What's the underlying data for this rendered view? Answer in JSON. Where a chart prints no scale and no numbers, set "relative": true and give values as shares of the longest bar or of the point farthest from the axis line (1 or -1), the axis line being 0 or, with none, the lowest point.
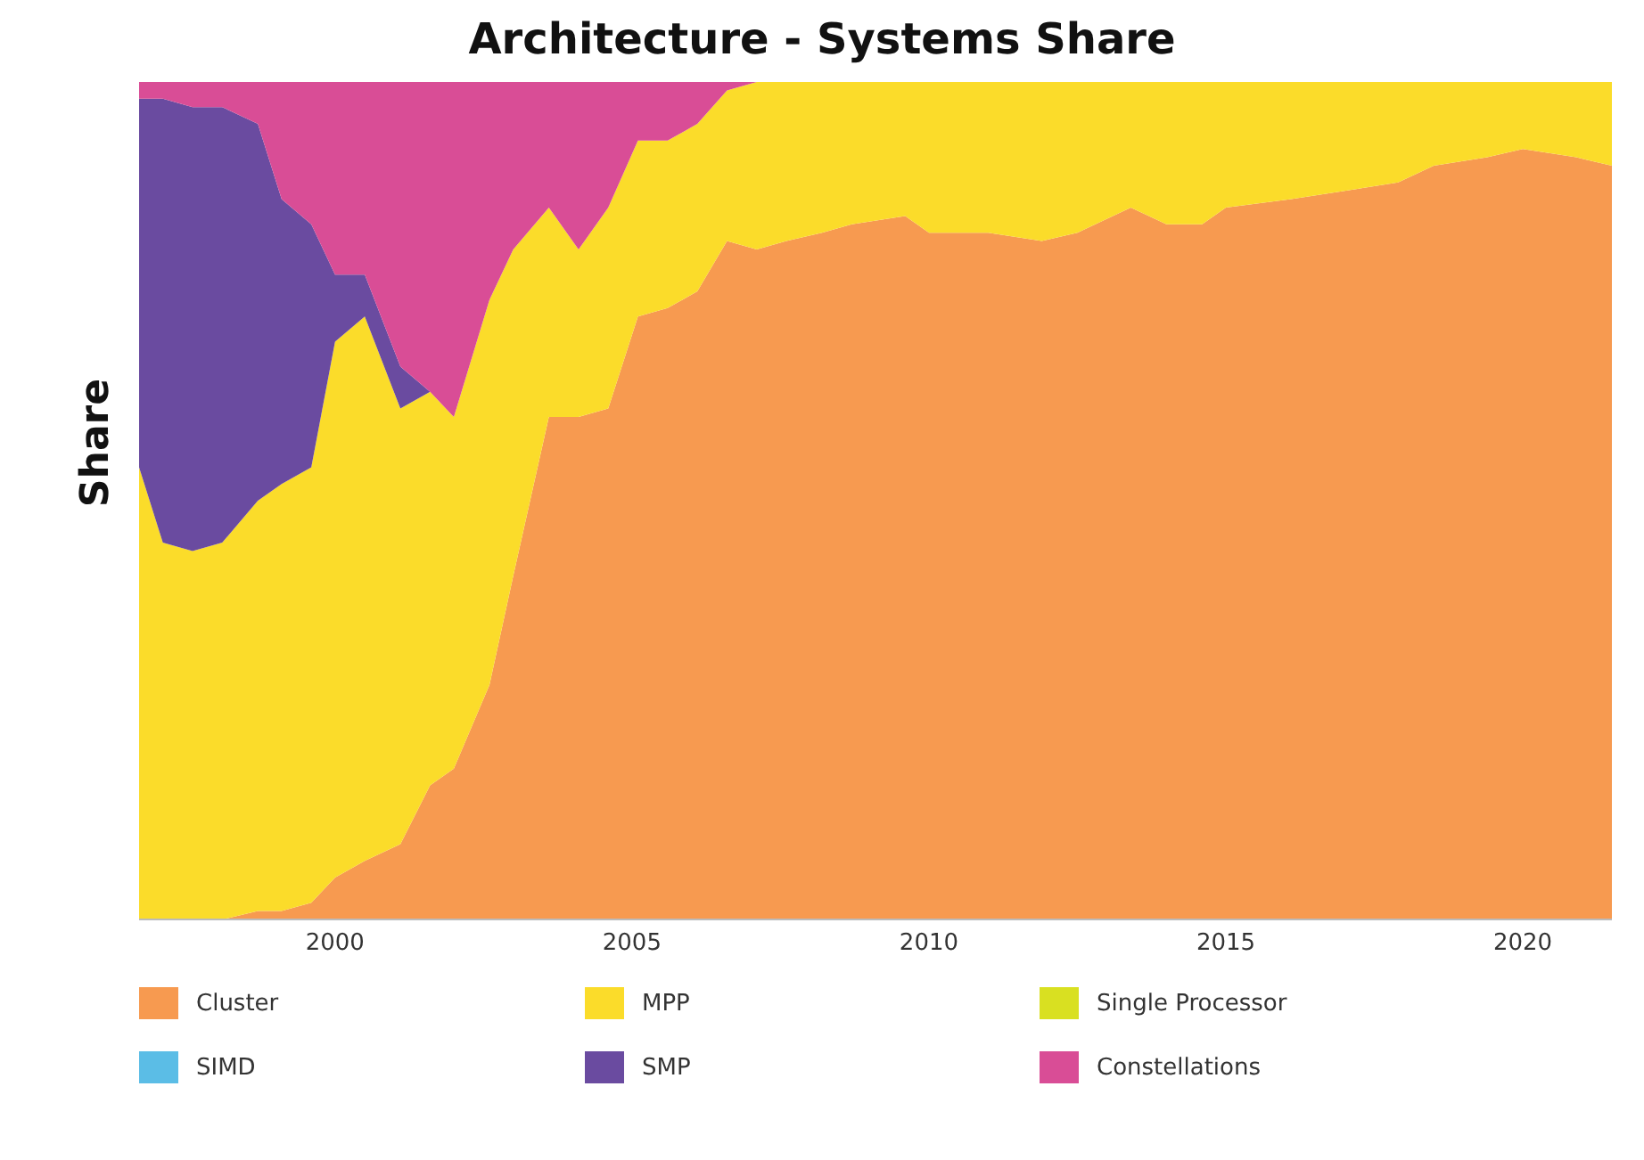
{
  "chart_data": {
    "type": "area",
    "title": "Architecture - Systems Share",
    "ylabel": "Share",
    "relative": true,
    "stacked": true,
    "legend": "bottom",
    "grid": false,
    "xlim": [
      1996.7,
      2021.5
    ],
    "xticks": [
      2000,
      2005,
      2010,
      2015,
      2020
    ],
    "x": [
      1996.7,
      1997.1,
      1997.6,
      1998.1,
      1998.7,
      1999.1,
      1999.6,
      2000.0,
      2000.5,
      2001.1,
      2001.6,
      2002.0,
      2002.6,
      2003.0,
      2003.6,
      2004.1,
      2004.6,
      2005.1,
      2005.6,
      2006.1,
      2006.6,
      2007.1,
      2007.6,
      2008.2,
      2008.7,
      2009.6,
      2010.0,
      2011.0,
      2011.9,
      2012.5,
      2013.4,
      2014.0,
      2014.6,
      2015.0,
      2016.1,
      2017.0,
      2017.9,
      2018.5,
      2019.4,
      2020.0,
      2020.9,
      2021.5
    ],
    "series": [
      {
        "name": "Cluster",
        "color": "#f79a50",
        "values": [
          0,
          0,
          0,
          0,
          0.01,
          0.01,
          0.02,
          0.05,
          0.07,
          0.09,
          0.16,
          0.18,
          0.28,
          0.41,
          0.6,
          0.6,
          0.61,
          0.72,
          0.73,
          0.75,
          0.81,
          0.8,
          0.81,
          0.82,
          0.83,
          0.84,
          0.82,
          0.82,
          0.81,
          0.82,
          0.85,
          0.83,
          0.83,
          0.85,
          0.86,
          0.87,
          0.88,
          0.9,
          0.91,
          0.92,
          0.91,
          0.9
        ]
      },
      {
        "name": "MPP",
        "color": "#fbdc2a",
        "values": [
          0.54,
          0.45,
          0.44,
          0.45,
          0.49,
          0.51,
          0.52,
          0.64,
          0.65,
          0.52,
          0.47,
          0.42,
          0.46,
          0.39,
          0.25,
          0.2,
          0.24,
          0.21,
          0.2,
          0.2,
          0.18,
          0.2,
          0.19,
          0.18,
          0.17,
          0.16,
          0.18,
          0.18,
          0.19,
          0.18,
          0.15,
          0.17,
          0.17,
          0.15,
          0.14,
          0.13,
          0.12,
          0.1,
          0.09,
          0.08,
          0.09,
          0.1
        ]
      },
      {
        "name": "Single Processor",
        "color": "#d9e021",
        "values": [
          null,
          null,
          null,
          null,
          null,
          null,
          null,
          null,
          null,
          null,
          null,
          null,
          null,
          null,
          null,
          null,
          null,
          null,
          null,
          null,
          null,
          null,
          null,
          null,
          null,
          null,
          null,
          null,
          null,
          null,
          null,
          null,
          null,
          null,
          null,
          null,
          null,
          null,
          null,
          null,
          null,
          null
        ]
      },
      {
        "name": "SIMD",
        "color": "#5bbde6",
        "values": [
          null,
          null,
          null,
          null,
          null,
          null,
          null,
          null,
          null,
          null,
          null,
          null,
          null,
          null,
          null,
          null,
          null,
          null,
          null,
          null,
          null,
          null,
          null,
          null,
          null,
          null,
          null,
          null,
          null,
          null,
          null,
          null,
          null,
          null,
          null,
          null,
          null,
          null,
          null,
          null,
          null,
          null
        ]
      },
      {
        "name": "SMP",
        "color": "#6a4ba0",
        "values": [
          0.44,
          0.53,
          0.53,
          0.52,
          0.45,
          0.34,
          0.29,
          0.08,
          0.05,
          0.05,
          0,
          0,
          0,
          0,
          0,
          0,
          0,
          0,
          0,
          0,
          0,
          0,
          0,
          0,
          0,
          0,
          0,
          0,
          0,
          0,
          0,
          0,
          0,
          0,
          0,
          0,
          0,
          0,
          0,
          0,
          0,
          0
        ]
      },
      {
        "name": "Constellations",
        "color": "#d94d96",
        "values": [
          0.02,
          0.02,
          0.03,
          0.03,
          0.05,
          0.14,
          0.17,
          0.23,
          0.23,
          0.34,
          0.37,
          0.4,
          0.26,
          0.2,
          0.15,
          0.2,
          0.15,
          0.07,
          0.07,
          0.05,
          0.01,
          0,
          0,
          0,
          0,
          0,
          0,
          0,
          0,
          0,
          0,
          0,
          0,
          0,
          0,
          0,
          0,
          0,
          0,
          0,
          0,
          0
        ]
      }
    ]
  }
}
